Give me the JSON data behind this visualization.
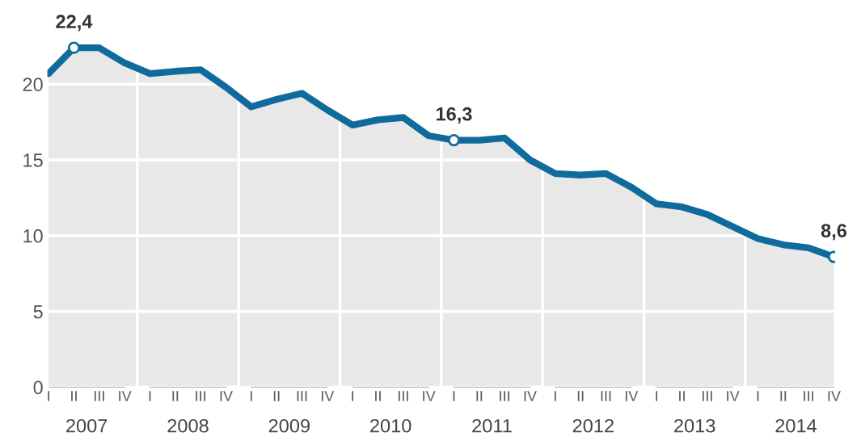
{
  "chart_data": {
    "type": "area",
    "categories": [
      "I",
      "II",
      "III",
      "IV",
      "I",
      "II",
      "III",
      "IV",
      "I",
      "II",
      "III",
      "IV",
      "I",
      "II",
      "III",
      "IV",
      "I",
      "II",
      "III",
      "IV",
      "I",
      "II",
      "III",
      "IV",
      "I",
      "II",
      "III",
      "IV",
      "I",
      "II",
      "III",
      "IV"
    ],
    "series": [
      {
        "color": "#0f6b9c",
        "values": [
          20.7,
          22.4,
          22.4,
          21.4,
          20.7,
          20.85,
          20.95,
          19.8,
          18.5,
          19.0,
          19.4,
          18.3,
          17.3,
          17.65,
          17.8,
          16.6,
          16.3,
          16.3,
          16.45,
          15.0,
          14.1,
          14.0,
          14.1,
          13.2,
          12.1,
          11.9,
          11.4,
          10.6,
          9.8,
          9.4,
          9.2,
          8.6
        ],
        "value_labels": [
          null,
          "22,4",
          null,
          null,
          null,
          null,
          null,
          null,
          null,
          null,
          null,
          null,
          null,
          null,
          null,
          null,
          "16,3",
          null,
          null,
          null,
          null,
          null,
          null,
          null,
          null,
          null,
          null,
          null,
          null,
          null,
          null,
          "8,6"
        ]
      }
    ],
    "annotations": [
      "2007",
      "2008",
      "2009",
      "2010",
      "2011",
      "2012",
      "2013",
      "2014"
    ],
    "ylim": [
      0,
      23.5
    ],
    "yticks": [
      0,
      5,
      10,
      15,
      20
    ],
    "grid": true,
    "line_style": "solid"
  }
}
